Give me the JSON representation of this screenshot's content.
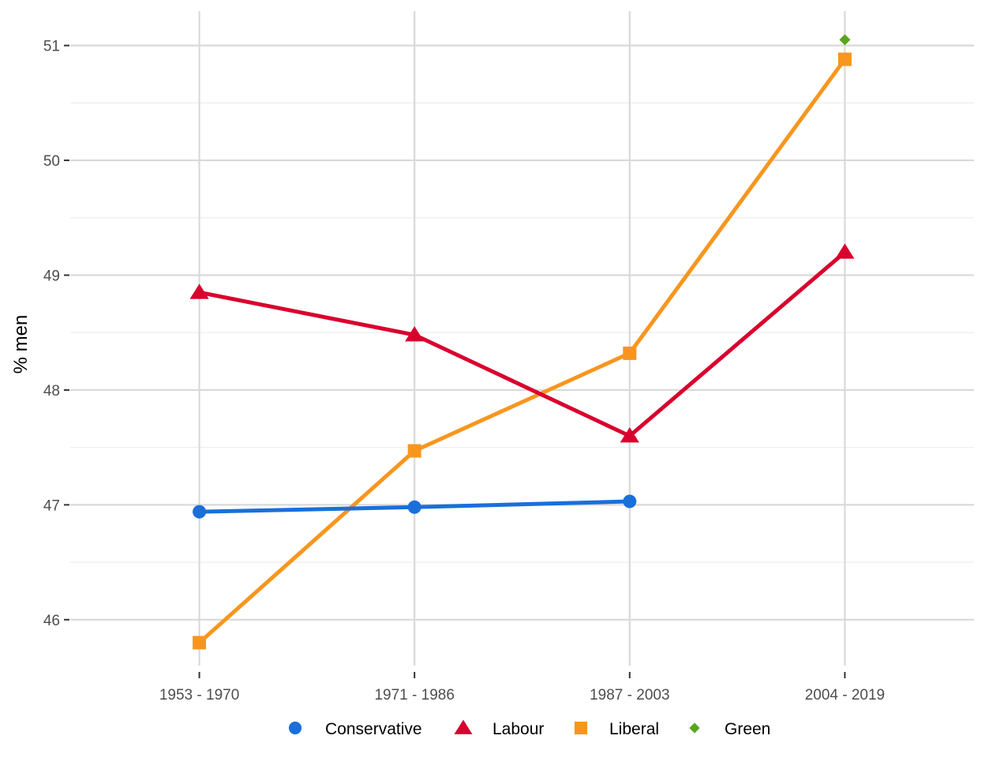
{
  "chart_data": {
    "type": "line",
    "title": "",
    "xlabel": "",
    "ylabel": "% men",
    "categories": [
      "1953 - 1970",
      "1971 - 1986",
      "1987 - 2003",
      "2004 - 2019"
    ],
    "ylim": [
      45.6,
      51.3
    ],
    "yticks": [
      46,
      47,
      48,
      49,
      50,
      51
    ],
    "grid": true,
    "legend_position": "bottom",
    "series": [
      {
        "name": "Conservative",
        "color": "#1A6FD9",
        "marker": "circle",
        "values": [
          46.94,
          46.98,
          47.03,
          null
        ]
      },
      {
        "name": "Labour",
        "color": "#D9002E",
        "marker": "triangle",
        "values": [
          48.85,
          48.48,
          47.6,
          49.2
        ]
      },
      {
        "name": "Liberal",
        "color": "#F7961E",
        "marker": "square",
        "values": [
          45.8,
          47.47,
          48.32,
          50.88
        ]
      },
      {
        "name": "Green",
        "color": "#5AA51F",
        "marker": "diamond",
        "values": [
          null,
          null,
          null,
          51.05
        ]
      }
    ]
  }
}
